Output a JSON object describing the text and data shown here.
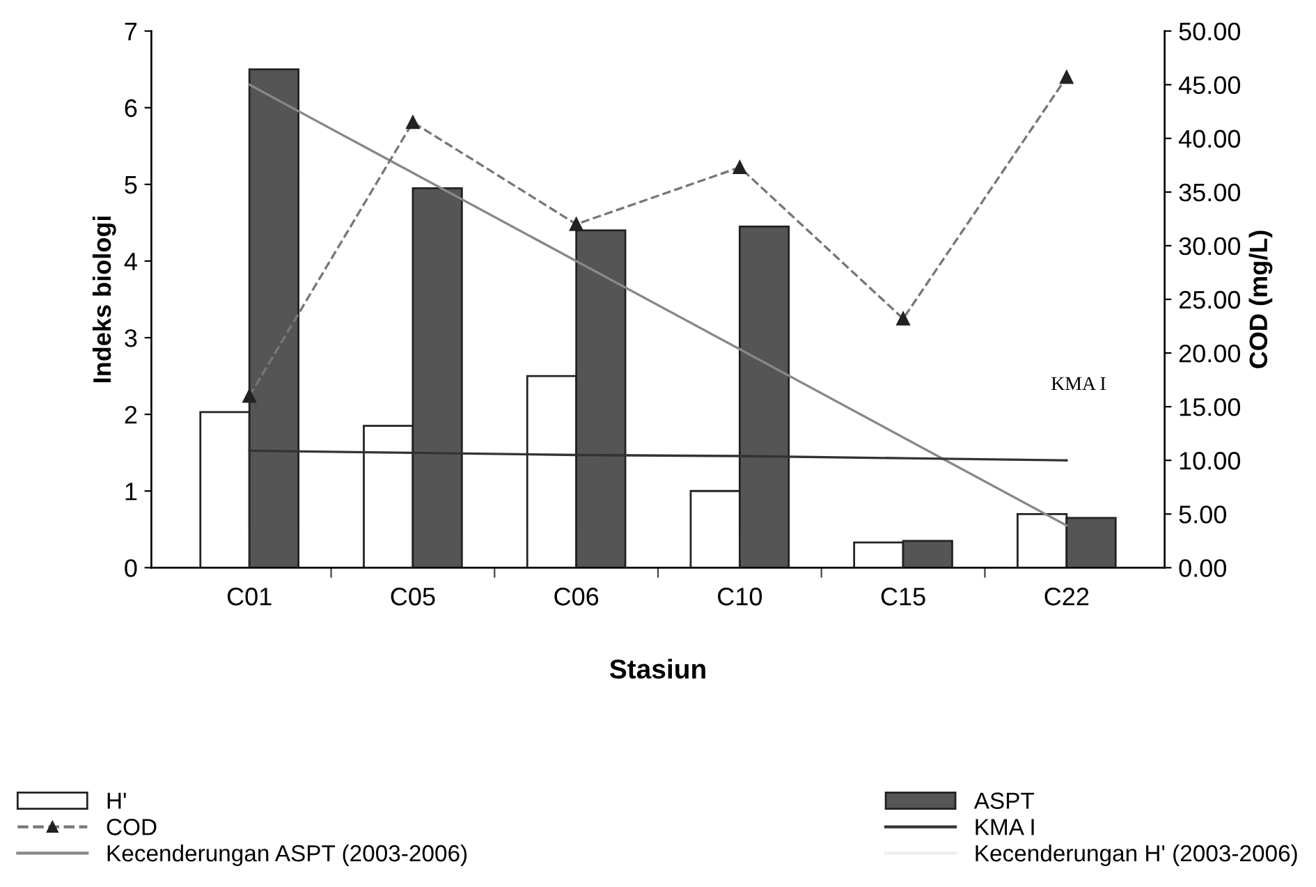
{
  "chart_data": {
    "type": "bar",
    "xlabel": "Stasiun",
    "ylabel": "Indeks biologi",
    "y2label": "COD (mg/L)",
    "categories": [
      "C01",
      "C05",
      "C06",
      "C10",
      "C15",
      "C22"
    ],
    "series": [
      {
        "name": "H'",
        "color": "#ffffff",
        "values": [
          2.03,
          1.85,
          2.5,
          1.0,
          0.33,
          0.7
        ]
      },
      {
        "name": "ASPT",
        "color": "#555555",
        "values": [
          6.5,
          4.95,
          4.4,
          4.45,
          0.35,
          0.65
        ]
      },
      {
        "name": "COD",
        "type": "line",
        "axis": "y2",
        "color": "#777777",
        "line_style": "dashed",
        "marker": "triangle",
        "values": [
          16,
          41.5,
          32,
          37.3,
          23.2,
          45.7
        ]
      },
      {
        "name": "KMA I",
        "type": "line",
        "axis": "y2",
        "color": "#333333",
        "line_style": "solid",
        "marker": "none",
        "values": [
          10.9,
          10.7,
          10.5,
          10.4,
          10.2,
          10.0
        ]
      },
      {
        "name": "Kecenderungan ASPT (2003-2006)",
        "type": "line",
        "color": "#888888",
        "line_style": "solid",
        "marker": "none",
        "values": [
          6.3,
          5.15,
          4.0,
          2.85,
          1.7,
          0.55
        ]
      },
      {
        "name": "Kecenderungan H' (2003-2006)",
        "type": "line",
        "color": "#eeeeee",
        "line_style": "solid",
        "marker": "none",
        "values": [
          null,
          null,
          null,
          null,
          null,
          null
        ]
      }
    ],
    "annotations": [
      "KMA I"
    ],
    "ylim": [
      0,
      7
    ],
    "yticks": [
      0,
      1,
      2,
      3,
      4,
      5,
      6,
      7
    ],
    "y2lim": [
      0,
      50
    ],
    "y2ticks": [
      {
        "value": 0,
        "label": "0.00"
      },
      {
        "value": 5,
        "label": "5.00"
      },
      {
        "value": 10,
        "label": "10.00"
      },
      {
        "value": 15,
        "label": "15.00"
      },
      {
        "value": 20,
        "label": "20.00"
      },
      {
        "value": 25,
        "label": "25.00"
      },
      {
        "value": 30,
        "label": "30.00"
      },
      {
        "value": 35,
        "label": "35.00"
      },
      {
        "value": 40,
        "label": "40.00"
      },
      {
        "value": 45,
        "label": "45.00"
      },
      {
        "value": 50,
        "label": "50.00"
      }
    ],
    "grid": false,
    "legend": "bottom"
  }
}
